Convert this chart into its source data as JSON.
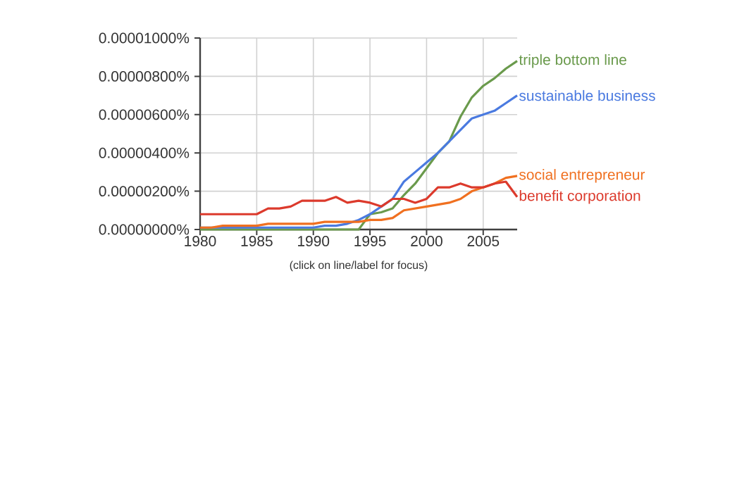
{
  "chart_data": {
    "type": "line",
    "x": [
      1980,
      1981,
      1982,
      1983,
      1984,
      1985,
      1986,
      1987,
      1988,
      1989,
      1990,
      1991,
      1992,
      1993,
      1994,
      1995,
      1996,
      1997,
      1998,
      1999,
      2000,
      2001,
      2002,
      2003,
      2004,
      2005,
      2006,
      2007,
      2008
    ],
    "series": [
      {
        "name": "triple bottom line",
        "color": "#6a9a4c",
        "values": [
          0,
          0,
          0,
          0,
          0,
          0,
          0,
          0,
          0,
          0,
          0,
          0,
          0,
          0,
          0,
          8e-07,
          9e-07,
          1.1e-06,
          1.8e-06,
          2.4e-06,
          3.2e-06,
          4e-06,
          4.6e-06,
          5.9e-06,
          6.9e-06,
          7.5e-06,
          7.9e-06,
          8.4e-06,
          8.8e-06
        ]
      },
      {
        "name": "sustainable business",
        "color": "#4a7ae0",
        "values": [
          1e-07,
          1e-07,
          1e-07,
          1e-07,
          1e-07,
          1e-07,
          1e-07,
          1e-07,
          1e-07,
          1e-07,
          1e-07,
          2e-07,
          2e-07,
          3e-07,
          5e-07,
          8e-07,
          1.2e-06,
          1.6e-06,
          2.5e-06,
          3e-06,
          3.5e-06,
          4e-06,
          4.6e-06,
          5.2e-06,
          5.8e-06,
          6e-06,
          6.2e-06,
          6.6e-06,
          7e-06
        ]
      },
      {
        "name": "social entrepreneur",
        "color": "#f07020",
        "values": [
          1e-07,
          1e-07,
          2e-07,
          2e-07,
          2e-07,
          2e-07,
          3e-07,
          3e-07,
          3e-07,
          3e-07,
          3e-07,
          4e-07,
          4e-07,
          4e-07,
          4e-07,
          5e-07,
          5e-07,
          6e-07,
          1e-06,
          1.1e-06,
          1.2e-06,
          1.3e-06,
          1.4e-06,
          1.6e-06,
          2e-06,
          2.2e-06,
          2.4e-06,
          2.7e-06,
          2.8e-06
        ]
      },
      {
        "name": "benefit corporation",
        "color": "#dc3a2c",
        "values": [
          8e-07,
          8e-07,
          8e-07,
          8e-07,
          8e-07,
          8e-07,
          1.1e-06,
          1.1e-06,
          1.2e-06,
          1.5e-06,
          1.5e-06,
          1.5e-06,
          1.7e-06,
          1.4e-06,
          1.5e-06,
          1.4e-06,
          1.2e-06,
          1.6e-06,
          1.6e-06,
          1.4e-06,
          1.6e-06,
          2.2e-06,
          2.2e-06,
          2.4e-06,
          2.2e-06,
          2.2e-06,
          2.4e-06,
          2.5e-06,
          1.7e-06
        ]
      }
    ],
    "xlim": [
      1980,
      2008
    ],
    "xticks": [
      1980,
      1985,
      1990,
      1995,
      2000,
      2005
    ],
    "ylim": [
      0,
      1e-05
    ],
    "yticks": [
      {
        "value": 0,
        "label": "0.00000000%"
      },
      {
        "value": 2e-06,
        "label": "0.00000200%"
      },
      {
        "value": 4e-06,
        "label": "0.00000400%"
      },
      {
        "value": 6e-06,
        "label": "0.00000600%"
      },
      {
        "value": 8e-06,
        "label": "0.00000800%"
      },
      {
        "value": 1e-05,
        "label": "0.00001000%"
      }
    ],
    "grid": true,
    "annotations": [
      "(click on line/label for focus)"
    ]
  }
}
